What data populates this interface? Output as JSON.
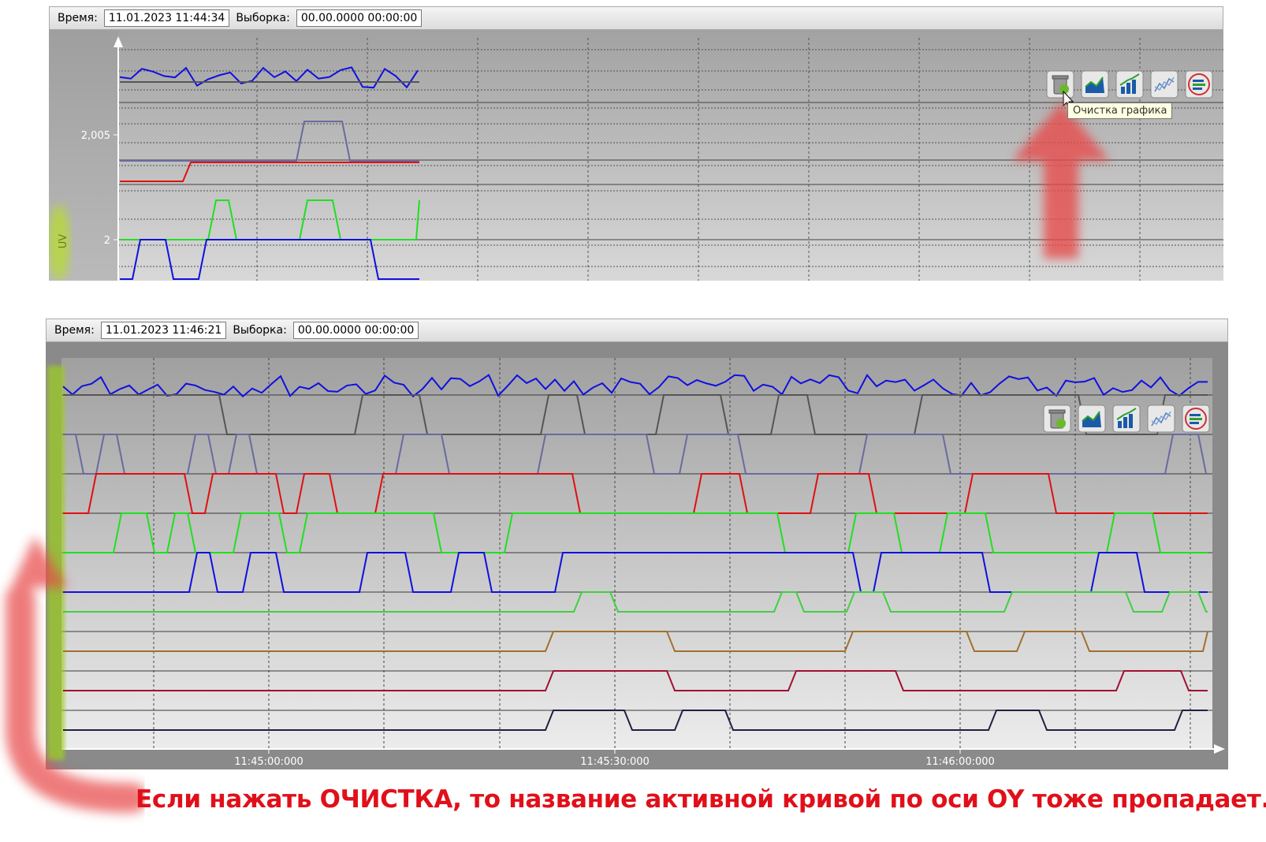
{
  "top_window": {
    "time_label": "Время:",
    "time_value": "11.01.2023 11:44:34",
    "sample_label": "Выборка:",
    "sample_value": "00.00.0000 00:00:00",
    "y_tick_1": "2,005",
    "y_tick_2": "2",
    "y_axis_name": "UV",
    "tooltip": "Очистка графика"
  },
  "bottom_window": {
    "time_label": "Время:",
    "time_value": "11.01.2023 11:46:21",
    "sample_label": "Выборка:",
    "sample_value": "00.00.0000 00:00:00",
    "x_ticks": [
      "11:45:00:000",
      "11:45:30:000",
      "11:46:00:000"
    ]
  },
  "toolbar_icons": [
    "clear-chart-icon",
    "area-chart-icon",
    "bar-chart-icon",
    "line-chart-icon",
    "stacked-chart-icon"
  ],
  "annotation_text": "Если нажать ОЧИСТКА, то название активной кривой по оси OY тоже пропадает.",
  "colors": {
    "accent_red": "#e0101a",
    "series": [
      "#1010e0",
      "#555555",
      "#6a6aa0",
      "#e01010",
      "#20e020",
      "#1010e0",
      "#40d040",
      "#a07030",
      "#a01030",
      "#202040"
    ]
  }
}
